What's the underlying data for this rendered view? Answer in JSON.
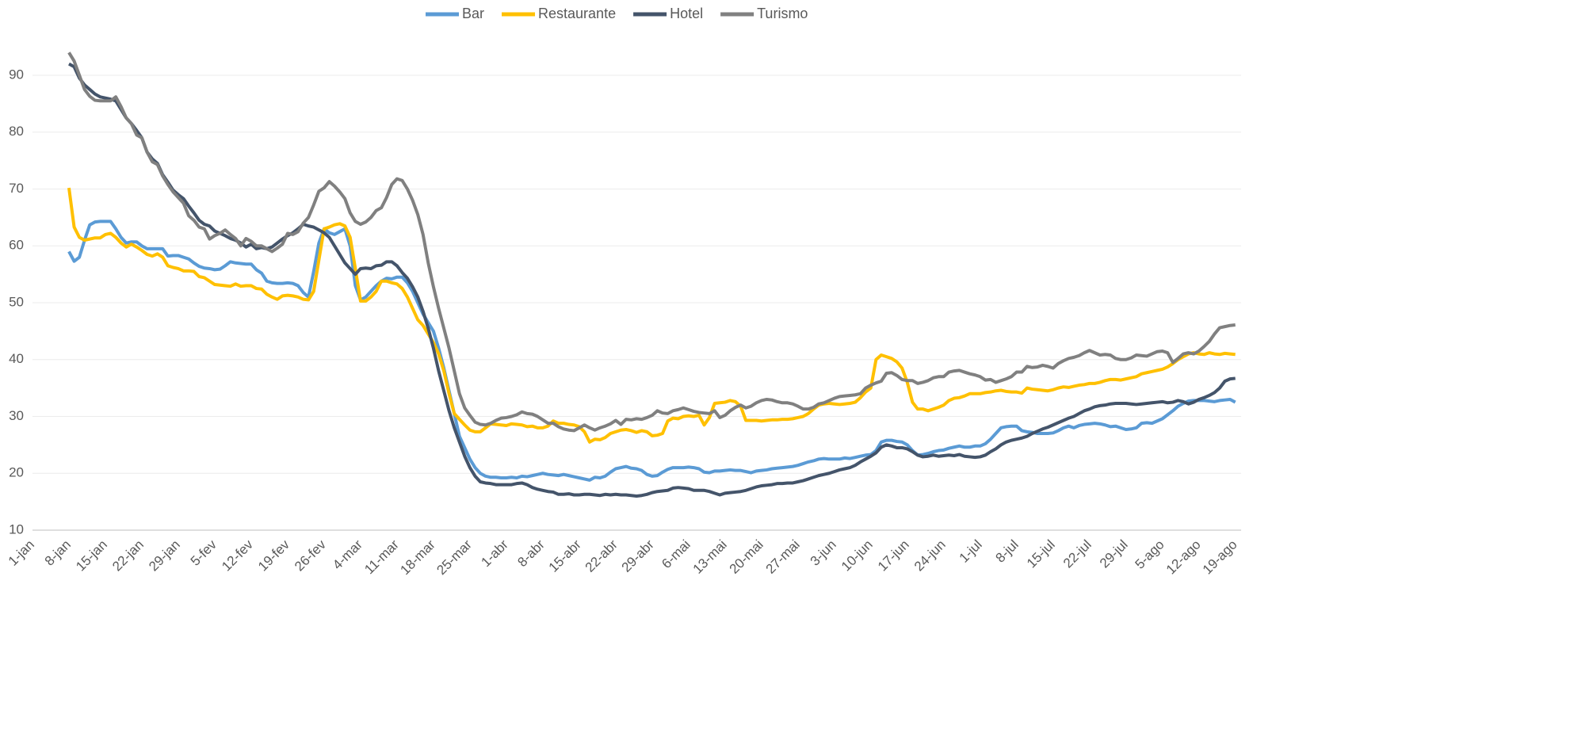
{
  "chart_data": {
    "type": "line",
    "categories": [
      "1-jan",
      null,
      null,
      null,
      null,
      null,
      null,
      "8-jan",
      null,
      null,
      null,
      null,
      null,
      null,
      "15-jan",
      null,
      null,
      null,
      null,
      null,
      null,
      "22-jan",
      null,
      null,
      null,
      null,
      null,
      null,
      "29-jan",
      null,
      null,
      null,
      null,
      null,
      null,
      "5-fev",
      null,
      null,
      null,
      null,
      null,
      null,
      "12-fev",
      null,
      null,
      null,
      null,
      null,
      null,
      "19-fev",
      null,
      null,
      null,
      null,
      null,
      null,
      "26-fev",
      null,
      null,
      null,
      null,
      null,
      null,
      "4-mar",
      null,
      null,
      null,
      null,
      null,
      null,
      "11-mar",
      null,
      null,
      null,
      null,
      null,
      null,
      "18-mar",
      null,
      null,
      null,
      null,
      null,
      null,
      "25-mar",
      null,
      null,
      null,
      null,
      null,
      null,
      "1-abr",
      null,
      null,
      null,
      null,
      null,
      null,
      "8-abr",
      null,
      null,
      null,
      null,
      null,
      null,
      "15-abr",
      null,
      null,
      null,
      null,
      null,
      null,
      "22-abr",
      null,
      null,
      null,
      null,
      null,
      null,
      "29-abr",
      null,
      null,
      null,
      null,
      null,
      null,
      "6-mai",
      null,
      null,
      null,
      null,
      null,
      null,
      "13-mai",
      null,
      null,
      null,
      null,
      null,
      null,
      "20-mai",
      null,
      null,
      null,
      null,
      null,
      null,
      "27-mai",
      null,
      null,
      null,
      null,
      null,
      null,
      "3-jun",
      null,
      null,
      null,
      null,
      null,
      null,
      "10-jun",
      null,
      null,
      null,
      null,
      null,
      null,
      "17-jun",
      null,
      null,
      null,
      null,
      null,
      null,
      "24-jun",
      null,
      null,
      null,
      null,
      null,
      null,
      "1-jul",
      null,
      null,
      null,
      null,
      null,
      null,
      "8-jul",
      null,
      null,
      null,
      null,
      null,
      null,
      "15-jul",
      null,
      null,
      null,
      null,
      null,
      null,
      "22-jul",
      null,
      null,
      null,
      null,
      null,
      null,
      "29-jul",
      null,
      null,
      null,
      null,
      null,
      null,
      "5-ago",
      null,
      null,
      null,
      null,
      null,
      null,
      "12-ago",
      null,
      null,
      null,
      null,
      null,
      null,
      "19-ago"
    ],
    "series": [
      {
        "name": "Bar",
        "color": "#5b9bd5",
        "values": [
          null,
          null,
          null,
          null,
          null,
          null,
          null,
          59,
          57.3,
          58,
          61,
          63.7,
          64.2,
          64.3,
          64.3,
          64.3,
          63,
          61.5,
          60.5,
          60.7,
          60.7,
          60,
          59.5,
          59.5,
          59.5,
          59.5,
          58.2,
          58.3,
          58.3,
          58,
          57.7,
          57,
          56.4,
          56.1,
          56,
          55.8,
          55.9,
          56.5,
          57.2,
          57,
          56.9,
          56.8,
          56.8,
          55.8,
          55.2,
          53.8,
          53.5,
          53.4,
          53.4,
          53.5,
          53.4,
          53,
          51.8,
          51,
          55.5,
          60.5,
          63,
          62.3,
          62,
          62.5,
          63,
          60,
          53,
          50.5,
          51,
          52,
          53,
          53.8,
          54.3,
          54.2,
          54.5,
          54.5,
          53.5,
          52,
          50,
          48,
          46.5,
          45,
          42,
          38.5,
          34.5,
          30.5,
          26.5,
          24.5,
          22.5,
          21,
          20,
          19.5,
          19.3,
          19.3,
          19.2,
          19.2,
          19.3,
          19.2,
          19.5,
          19.4,
          19.6,
          19.8,
          20,
          19.8,
          19.7,
          19.6,
          19.8,
          19.6,
          19.4,
          19.2,
          19,
          18.8,
          19.3,
          19.2,
          19.5,
          20.2,
          20.8,
          21,
          21.2,
          20.9,
          20.8,
          20.5,
          19.8,
          19.5,
          19.6,
          20.2,
          20.7,
          21,
          21,
          21,
          21.1,
          21,
          20.8,
          20.2,
          20.1,
          20.4,
          20.4,
          20.5,
          20.6,
          20.5,
          20.5,
          20.3,
          20.1,
          20.4,
          20.5,
          20.6,
          20.8,
          20.9,
          21,
          21.1,
          21.2,
          21.4,
          21.7,
          22,
          22.2,
          22.5,
          22.6,
          22.5,
          22.5,
          22.5,
          22.7,
          22.6,
          22.8,
          23,
          23.2,
          23.3,
          24,
          25.5,
          25.8,
          25.8,
          25.6,
          25.5,
          25,
          24,
          23.2,
          23.3,
          23.5,
          23.8,
          24,
          24.1,
          24.4,
          24.6,
          24.8,
          24.6,
          24.6,
          24.8,
          24.8,
          25.2,
          26,
          27,
          28,
          28.2,
          28.3,
          28.3,
          27.5,
          27.3,
          27.2,
          27,
          27,
          27,
          27.1,
          27.5,
          28,
          28.3,
          28,
          28.4,
          28.6,
          28.7,
          28.8,
          28.7,
          28.5,
          28.2,
          28.3,
          28,
          27.7,
          27.8,
          28,
          28.8,
          28.9,
          28.8,
          29.2,
          29.6,
          30.3,
          31,
          31.8,
          32.3,
          32.7,
          32.8,
          32.8,
          32.8,
          32.7,
          32.6,
          32.8,
          32.9,
          33,
          32.5
        ]
      },
      {
        "name": "Restaurante",
        "color": "#ffc000",
        "values": [
          null,
          null,
          null,
          null,
          null,
          null,
          null,
          70.2,
          63.3,
          61.5,
          61,
          61.2,
          61.4,
          61.4,
          62,
          62.2,
          61.5,
          60.5,
          59.8,
          60.3,
          59.8,
          59.2,
          58.5,
          58.2,
          58.6,
          58,
          56.5,
          56.2,
          56,
          55.6,
          55.6,
          55.5,
          54.6,
          54.4,
          53.8,
          53.2,
          53.1,
          53,
          52.9,
          53.3,
          52.9,
          53,
          53,
          52.5,
          52.4,
          51.5,
          51,
          50.6,
          51.2,
          51.3,
          51.2,
          51,
          50.6,
          50.5,
          52,
          57.5,
          63,
          63.3,
          63.7,
          63.9,
          63.5,
          61.5,
          56,
          50.3,
          50.3,
          51,
          52,
          53.8,
          53.8,
          53.5,
          53.3,
          52.5,
          51,
          49,
          47,
          46,
          44.5,
          43,
          41,
          38,
          34,
          30.5,
          29.5,
          28.5,
          27.6,
          27.3,
          27.3,
          28,
          28.7,
          28.6,
          28.5,
          28.4,
          28.7,
          28.6,
          28.5,
          28.2,
          28.3,
          28,
          28,
          28.3,
          29.2,
          28.8,
          28.8,
          28.6,
          28.5,
          28.2,
          27.3,
          25.5,
          26,
          25.9,
          26.3,
          27,
          27.3,
          27.6,
          27.7,
          27.5,
          27.2,
          27.5,
          27.3,
          26.6,
          26.7,
          27,
          29.2,
          29.7,
          29.6,
          30,
          30.1,
          30,
          30.2,
          28.5,
          29.8,
          32.3,
          32.4,
          32.5,
          32.8,
          32.6,
          31.8,
          29.3,
          29.3,
          29.3,
          29.2,
          29.3,
          29.4,
          29.4,
          29.5,
          29.5,
          29.6,
          29.8,
          30,
          30.5,
          31.3,
          32,
          32.2,
          32.3,
          32.2,
          32.1,
          32.2,
          32.3,
          32.5,
          33.3,
          34.3,
          35,
          40,
          40.8,
          40.5,
          40.2,
          39.6,
          38.5,
          36,
          32.5,
          31.3,
          31.3,
          31,
          31.3,
          31.6,
          32,
          32.8,
          33.2,
          33.3,
          33.6,
          34,
          34,
          34,
          34.2,
          34.3,
          34.5,
          34.6,
          34.4,
          34.3,
          34.3,
          34.1,
          35,
          34.8,
          34.7,
          34.6,
          34.5,
          34.7,
          35,
          35.2,
          35.1,
          35.3,
          35.5,
          35.6,
          35.8,
          35.8,
          36,
          36.3,
          36.5,
          36.5,
          36.4,
          36.6,
          36.8,
          37,
          37.5,
          37.7,
          37.9,
          38.1,
          38.3,
          38.7,
          39.3,
          40,
          40.5,
          41,
          41.2,
          41,
          40.9,
          41.2,
          41,
          40.9,
          41.1,
          41,
          40.9
        ]
      },
      {
        "name": "Hotel",
        "color": "#44546a",
        "values": [
          null,
          null,
          null,
          null,
          null,
          null,
          null,
          92,
          91.5,
          89.5,
          88.3,
          87.5,
          86.7,
          86.2,
          86,
          85.8,
          85.5,
          84,
          82.5,
          81.5,
          80.3,
          79,
          76.5,
          75.3,
          74.5,
          72.5,
          71.2,
          69.8,
          69,
          68.3,
          67,
          65.8,
          64.5,
          63.8,
          63.5,
          62.6,
          62.2,
          61.8,
          61.3,
          61,
          60.5,
          59.8,
          60.3,
          59.5,
          59.7,
          59.5,
          59.8,
          60.5,
          61.2,
          61.8,
          62.3,
          63,
          63.8,
          63.5,
          63.3,
          62.8,
          62.3,
          61.5,
          60,
          58.5,
          57,
          56,
          55,
          56,
          56.1,
          56,
          56.5,
          56.6,
          57.2,
          57.2,
          56.5,
          55.3,
          54.3,
          52.8,
          51,
          48.5,
          45.5,
          42,
          38,
          34.5,
          31,
          28,
          25.5,
          23,
          21,
          19.5,
          18.5,
          18.3,
          18.2,
          18,
          18,
          18,
          18,
          18.2,
          18.3,
          18,
          17.5,
          17.2,
          17,
          16.8,
          16.7,
          16.3,
          16.3,
          16.4,
          16.2,
          16.2,
          16.3,
          16.3,
          16.2,
          16.1,
          16.3,
          16.2,
          16.3,
          16.2,
          16.2,
          16.1,
          16,
          16.1,
          16.3,
          16.6,
          16.8,
          16.9,
          17,
          17.4,
          17.5,
          17.4,
          17.3,
          17,
          17,
          17,
          16.8,
          16.5,
          16.2,
          16.5,
          16.6,
          16.7,
          16.8,
          17,
          17.3,
          17.6,
          17.8,
          17.9,
          18,
          18.2,
          18.2,
          18.3,
          18.3,
          18.5,
          18.7,
          19,
          19.3,
          19.6,
          19.8,
          20,
          20.3,
          20.6,
          20.8,
          21,
          21.4,
          22,
          22.5,
          23,
          23.6,
          24.6,
          25,
          24.8,
          24.5,
          24.5,
          24.3,
          23.8,
          23.2,
          22.9,
          23,
          23.2,
          23,
          23.1,
          23.2,
          23.1,
          23.3,
          23,
          22.9,
          22.8,
          22.9,
          23.2,
          23.8,
          24.3,
          25,
          25.5,
          25.8,
          26,
          26.2,
          26.5,
          27,
          27.4,
          27.8,
          28.1,
          28.5,
          28.9,
          29.3,
          29.7,
          30,
          30.5,
          31,
          31.3,
          31.7,
          31.9,
          32,
          32.2,
          32.3,
          32.3,
          32.3,
          32.2,
          32.1,
          32.2,
          32.3,
          32.4,
          32.5,
          32.6,
          32.4,
          32.5,
          32.8,
          32.6,
          32.2,
          32.5,
          33,
          33.3,
          33.7,
          34.2,
          35,
          36.2,
          36.6,
          36.7
        ]
      },
      {
        "name": "Turismo",
        "color": "#808080",
        "values": [
          null,
          null,
          null,
          null,
          null,
          null,
          null,
          94,
          92.5,
          90,
          87.5,
          86.3,
          85.6,
          85.5,
          85.5,
          85.5,
          86.2,
          84.5,
          82.5,
          81.5,
          79.5,
          79,
          76.5,
          74.8,
          74.3,
          72.3,
          70.8,
          69.5,
          68.5,
          67.5,
          65.3,
          64.5,
          63.3,
          63,
          61.2,
          61.8,
          62.2,
          62.8,
          62,
          61.3,
          60,
          61.3,
          60.8,
          60,
          60,
          59.5,
          59,
          59.6,
          60.3,
          62.2,
          62,
          62.5,
          64,
          65,
          67.2,
          69.6,
          70.2,
          71.3,
          70.5,
          69.5,
          68.3,
          65.8,
          64.3,
          63.8,
          64.2,
          65,
          66.2,
          66.7,
          68.5,
          70.8,
          71.8,
          71.5,
          70,
          68,
          65.5,
          62,
          57,
          52.8,
          49,
          45.5,
          42,
          38,
          34,
          31.5,
          30.2,
          29,
          28.6,
          28.5,
          28.8,
          29.3,
          29.7,
          29.8,
          30,
          30.3,
          30.8,
          30.5,
          30.4,
          30,
          29.4,
          28.8,
          28.8,
          28.2,
          27.8,
          27.6,
          27.5,
          28,
          28.5,
          28,
          27.6,
          28,
          28.3,
          28.7,
          29.3,
          28.6,
          29.5,
          29.4,
          29.6,
          29.5,
          29.8,
          30.2,
          31,
          30.6,
          30.5,
          31,
          31.2,
          31.5,
          31.2,
          30.9,
          30.7,
          30.6,
          30.5,
          31,
          29.8,
          30.2,
          31,
          31.6,
          32,
          31.5,
          31.8,
          32.4,
          32.8,
          33,
          32.9,
          32.6,
          32.4,
          32.4,
          32.2,
          31.8,
          31.3,
          31.3,
          31.6,
          32.2,
          32.4,
          32.8,
          33.2,
          33.5,
          33.6,
          33.7,
          33.8,
          34,
          35,
          35.5,
          35.9,
          36.2,
          37.6,
          37.7,
          37.2,
          36.5,
          36.3,
          36.3,
          35.8,
          36,
          36.3,
          36.8,
          37,
          37,
          37.8,
          38,
          38.1,
          37.8,
          37.5,
          37.3,
          37,
          36.4,
          36.5,
          36,
          36.3,
          36.6,
          37,
          37.8,
          37.8,
          38.8,
          38.6,
          38.7,
          39,
          38.8,
          38.5,
          39.3,
          39.8,
          40.2,
          40.4,
          40.7,
          41.2,
          41.6,
          41.2,
          40.8,
          40.9,
          40.8,
          40.2,
          40,
          40,
          40.3,
          40.8,
          40.7,
          40.6,
          41,
          41.4,
          41.5,
          41.2,
          39.5,
          40.2,
          41,
          41.2,
          41,
          41.5,
          42.3,
          43.2,
          44.5,
          45.6,
          45.8,
          46,
          46.1
        ]
      }
    ],
    "ylim": [
      10,
      100
    ],
    "yticks": [
      10,
      20,
      30,
      40,
      50,
      60,
      70,
      80,
      90
    ],
    "grid": true,
    "legend": "top"
  }
}
